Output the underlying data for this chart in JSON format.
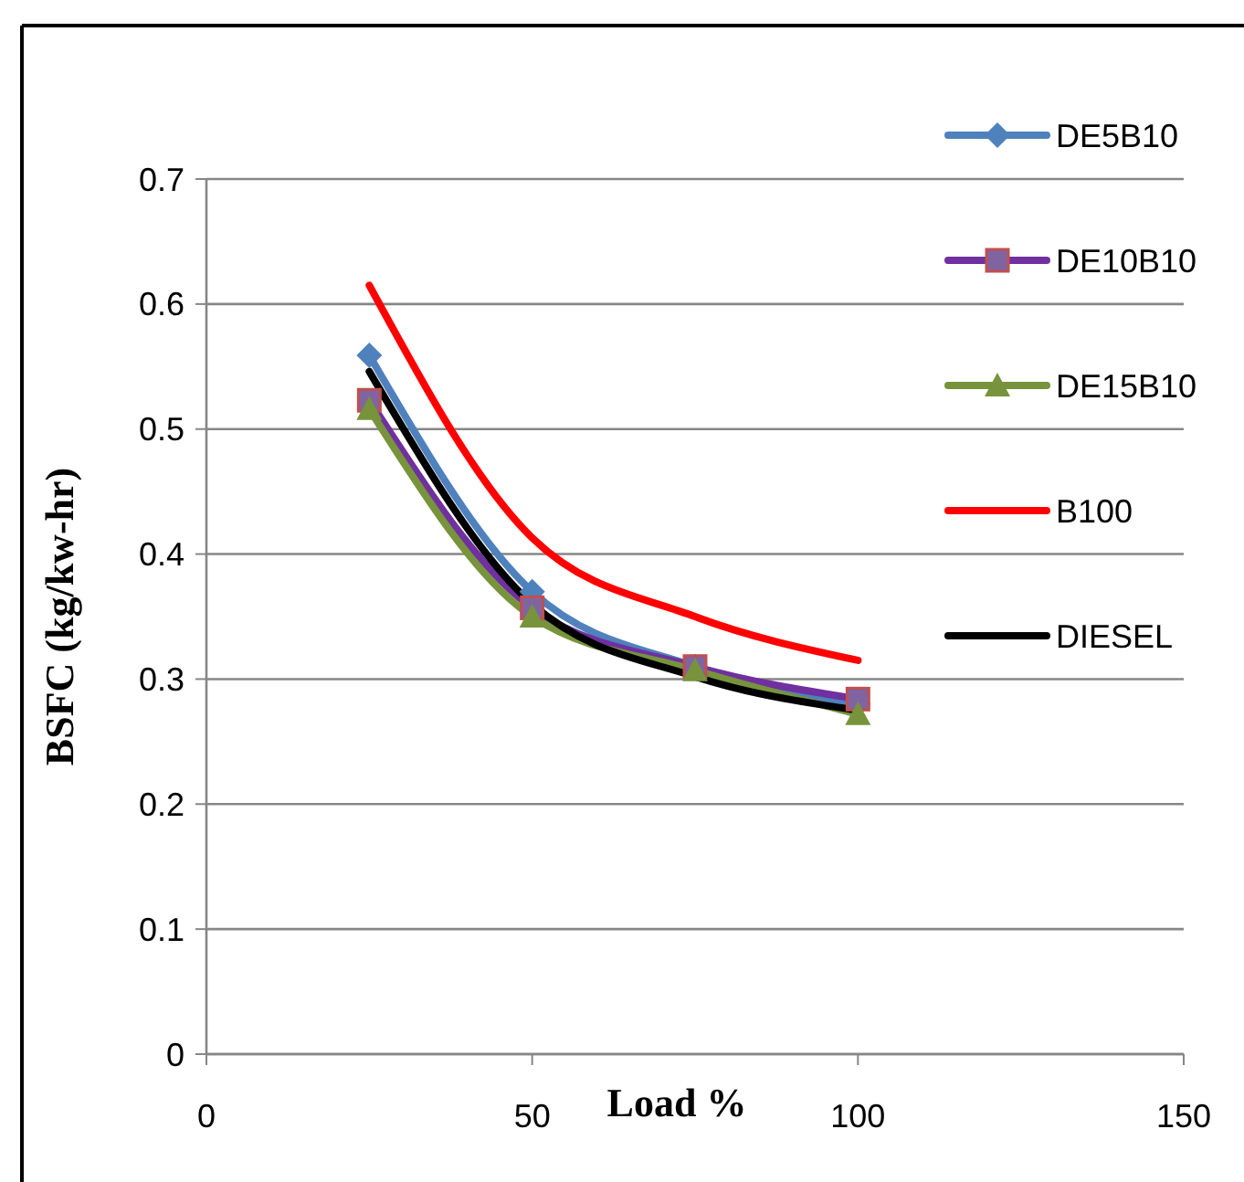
{
  "chart_data": {
    "type": "line",
    "xlabel": "Load %",
    "ylabel": "BSFC (kg/kw-hr)",
    "x": [
      25,
      50,
      75,
      100
    ],
    "xlim": [
      0,
      150
    ],
    "xticks": [
      0,
      50,
      100,
      150
    ],
    "ylim": [
      0,
      0.7
    ],
    "yticks": [
      0,
      0.1,
      0.2,
      0.3,
      0.4,
      0.5,
      0.6,
      0.7
    ],
    "grid": "y",
    "legend": "right",
    "series": [
      {
        "name": "DE5B10",
        "color": "#4f81bd",
        "marker": "diamond",
        "values": [
          0.559,
          0.37,
          0.31,
          0.28
        ]
      },
      {
        "name": "DE10B10",
        "color": "#7030a0",
        "marker": "square",
        "values": [
          0.523,
          0.357,
          0.31,
          0.284
        ]
      },
      {
        "name": "DE15B10",
        "color": "#77933c",
        "marker": "triangle",
        "values": [
          0.516,
          0.35,
          0.307,
          0.272
        ]
      },
      {
        "name": "B100",
        "color": "#ff0000",
        "marker": "none",
        "values": [
          0.615,
          0.413,
          0.35,
          0.315
        ]
      },
      {
        "name": "DIESEL",
        "color": "#000000",
        "marker": "none",
        "values": [
          0.546,
          0.36,
          0.302,
          0.275
        ]
      }
    ]
  }
}
